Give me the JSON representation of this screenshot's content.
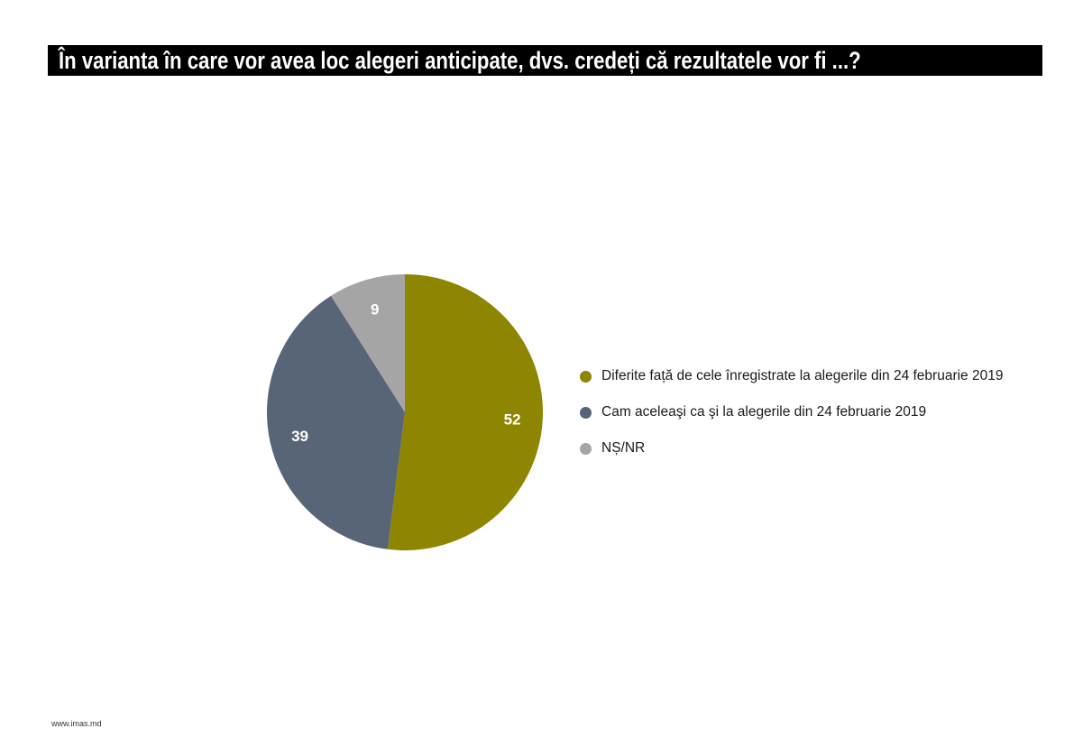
{
  "chart_data": {
    "type": "pie",
    "title": "În varianta în care vor avea loc alegeri anticipate, dvs. credeți că rezultatele vor fi ...?",
    "start_angle": "top",
    "direction": "clockwise",
    "legend_position": "right",
    "slices": [
      {
        "label": "Diferite față de cele înregistrate la alegerile din 24 februarie 2019",
        "value": 52,
        "color": "#8E8500"
      },
      {
        "label": "Cam aceleaşi ca şi la alegerile din 24 februarie 2019",
        "value": 39,
        "color": "#586577"
      },
      {
        "label": "NȘ/NR",
        "value": 9,
        "color": "#A5A5A5"
      }
    ]
  },
  "footer": "www.imas.md"
}
